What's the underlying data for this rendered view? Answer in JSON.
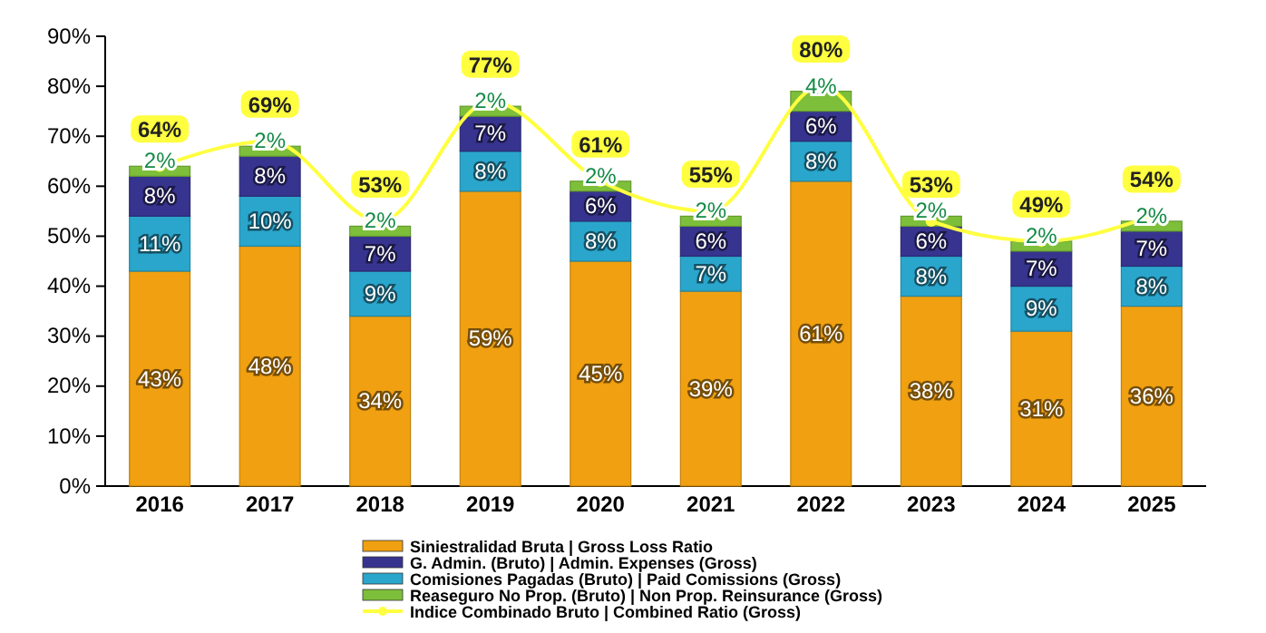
{
  "chart_data": {
    "type": "bar",
    "stacked": true,
    "categories": [
      "2016",
      "2017",
      "2018",
      "2019",
      "2020",
      "2021",
      "2022",
      "2023",
      "2024",
      "2025"
    ],
    "ylim": [
      0,
      90
    ],
    "yticks": [
      {
        "value": 0,
        "label": "0%"
      },
      {
        "value": 10,
        "label": "10%"
      },
      {
        "value": 20,
        "label": "20%"
      },
      {
        "value": 30,
        "label": "30%"
      },
      {
        "value": 40,
        "label": "40%"
      },
      {
        "value": 50,
        "label": "50%"
      },
      {
        "value": 60,
        "label": "60%"
      },
      {
        "value": 70,
        "label": "70%"
      },
      {
        "value": 80,
        "label": "80%"
      },
      {
        "value": 90,
        "label": "90%"
      }
    ],
    "legend": "bottom",
    "grid": false,
    "series": [
      {
        "name": "Siniestralidad Bruta | Gross Loss Ratio",
        "color": "#f0a010",
        "values": [
          43,
          48,
          34,
          59,
          45,
          39,
          61,
          38,
          31,
          36
        ],
        "value_labels": [
          "43%",
          "48%",
          "34%",
          "59%",
          "45%",
          "39%",
          "61%",
          "38%",
          "31%",
          "36%"
        ]
      },
      {
        "name": "Comisiones Pagadas (Bruto) | Paid Comissions (Gross)",
        "color": "#2aa6cc",
        "values": [
          11,
          10,
          9,
          8,
          8,
          7,
          8,
          8,
          9,
          8
        ],
        "value_labels": [
          "11%",
          "10%",
          "9%",
          "8%",
          "8%",
          "7%",
          "8%",
          "8%",
          "9%",
          "8%"
        ]
      },
      {
        "name": "G. Admin. (Bruto) | Admin. Expenses (Gross)",
        "color": "#37348f",
        "values": [
          8,
          8,
          7,
          7,
          6,
          6,
          6,
          6,
          7,
          7
        ],
        "value_labels": [
          "8%",
          "8%",
          "7%",
          "7%",
          "6%",
          "6%",
          "6%",
          "6%",
          "7%",
          "7%"
        ]
      },
      {
        "name": "Reaseguro No Prop. (Bruto) | Non Prop. Reinsurance (Gross)",
        "color": "#7dbf3a",
        "values": [
          2,
          2,
          2,
          2,
          2,
          2,
          4,
          2,
          2,
          2
        ],
        "value_labels": [
          "2%",
          "2%",
          "2%",
          "2%",
          "2%",
          "2%",
          "4%",
          "2%",
          "2%",
          "2%"
        ]
      },
      {
        "name": "Indice Combinado Bruto | Combined Ratio (Gross)",
        "type": "line",
        "color": "#ffff40",
        "marker": "circle",
        "values": [
          64,
          69,
          53,
          77,
          61,
          55,
          80,
          53,
          49,
          54
        ],
        "value_labels": [
          "64%",
          "69%",
          "53%",
          "77%",
          "61%",
          "55%",
          "80%",
          "53%",
          "49%",
          "54%"
        ]
      }
    ]
  }
}
